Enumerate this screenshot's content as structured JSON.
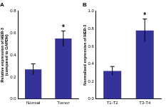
{
  "chart_data": [
    {
      "type": "bar",
      "title": "A",
      "y_label": [
        "Relative expression of HER-3",
        "(compared to GAPDH)"
      ],
      "categories": [
        "Normal",
        "Tumor"
      ],
      "values": [
        0.27,
        0.55
      ],
      "errors": [
        0.05,
        0.07
      ],
      "color": "#33339a",
      "ylim": [
        0,
        0.8
      ],
      "yticks": [
        {
          "value": 0,
          "label": "0.0"
        },
        {
          "value": 0.2,
          "label": "0.2"
        },
        {
          "value": 0.4,
          "label": "0.4"
        },
        {
          "value": 0.6,
          "label": "0.6"
        },
        {
          "value": 0.8,
          "label": "0.8"
        }
      ],
      "grid": false,
      "annotations": [
        {
          "category": "Tumor",
          "text": "*"
        }
      ]
    },
    {
      "type": "bar",
      "title": "B",
      "y_label": "Normalized expression of HER-3",
      "categories": [
        "T1-T2",
        "T3-T4"
      ],
      "values": [
        0.32,
        0.78
      ],
      "errors": [
        0.05,
        0.13
      ],
      "color": "#33339a",
      "ylim": [
        0,
        1.0
      ],
      "yticks": [
        {
          "value": 0,
          "label": "0.0"
        },
        {
          "value": 0.2,
          "label": "0.2"
        },
        {
          "value": 0.4,
          "label": "0.4"
        },
        {
          "value": 0.6,
          "label": "0.6"
        },
        {
          "value": 0.8,
          "label": "0.8"
        },
        {
          "value": 1.0,
          "label": "1.0"
        }
      ],
      "grid": false,
      "annotations": [
        {
          "category": "T3-T4",
          "text": "*"
        }
      ]
    }
  ]
}
